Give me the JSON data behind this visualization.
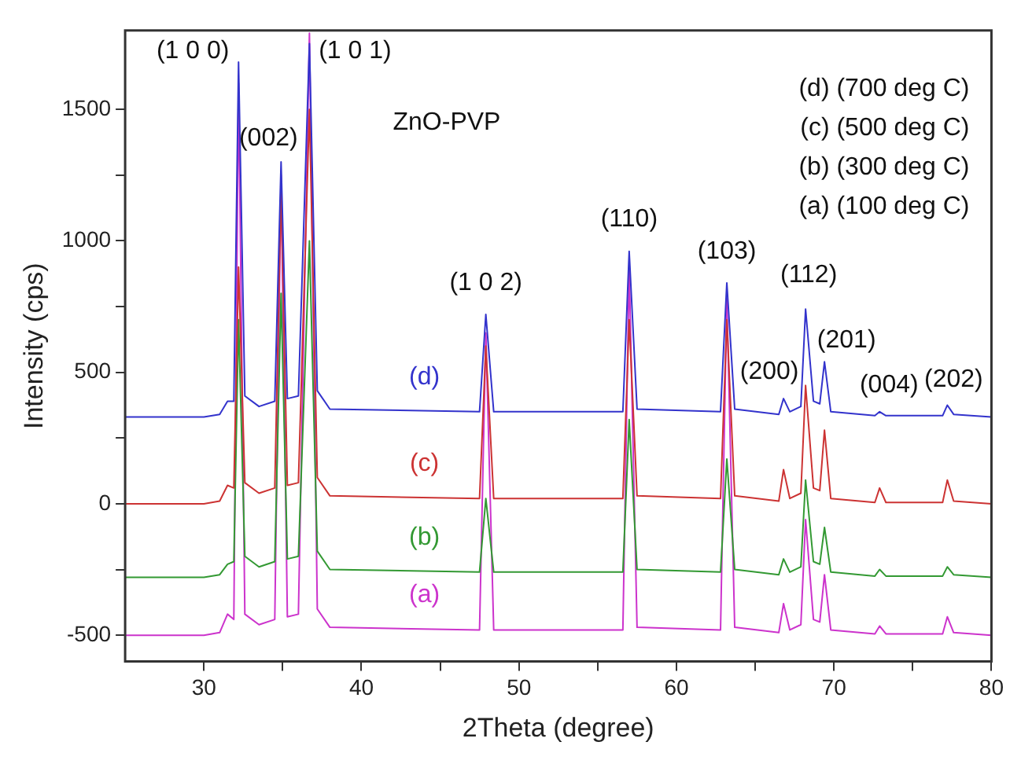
{
  "chart_data": {
    "type": "line",
    "xlabel": "2Theta (degree)",
    "ylabel": "Intensity (cps)",
    "xlim": [
      25,
      80
    ],
    "ylim": [
      -600,
      1800
    ],
    "xticks": [
      30,
      {
        "value": 35,
        "label": null
      },
      40,
      {
        "value": 45,
        "label": null
      },
      50,
      {
        "value": 55,
        "label": null
      },
      60,
      {
        "value": 65,
        "label": null
      },
      70,
      {
        "value": 75,
        "label": null
      },
      80
    ],
    "yticks": [
      {
        "value": -250,
        "label": null
      },
      -500,
      0,
      500,
      1000,
      1500,
      {
        "value": 250,
        "label": null
      },
      {
        "value": 750,
        "label": null
      },
      {
        "value": 1250,
        "label": null
      }
    ],
    "grid": false,
    "legend": false,
    "marker": "none",
    "line_style": "solid",
    "x": [
      25,
      30,
      31,
      31.5,
      31.9,
      32.2,
      32.6,
      33.5,
      34.5,
      34.9,
      35.3,
      36.0,
      36.7,
      37.2,
      38,
      47.5,
      47.9,
      48.4,
      56.6,
      57.0,
      57.5,
      62.8,
      63.2,
      63.7,
      66.5,
      66.8,
      67.2,
      67.9,
      68.2,
      68.7,
      69.1,
      69.4,
      69.8,
      72.6,
      72.9,
      73.3,
      76.9,
      77.2,
      77.6,
      80
    ],
    "series": [
      {
        "name": "(d)",
        "color": "#3333cc",
        "values": [
          330,
          330,
          340,
          390,
          390,
          1680,
          410,
          370,
          390,
          1300,
          400,
          410,
          1750,
          430,
          360,
          350,
          720,
          350,
          350,
          960,
          360,
          350,
          840,
          360,
          340,
          400,
          350,
          370,
          740,
          390,
          380,
          540,
          350,
          335,
          350,
          335,
          335,
          375,
          340,
          330
        ]
      },
      {
        "name": "(c)",
        "color": "#cc3333",
        "values": [
          0,
          0,
          10,
          70,
          60,
          900,
          80,
          40,
          60,
          1200,
          70,
          80,
          1500,
          100,
          30,
          20,
          600,
          20,
          20,
          700,
          30,
          20,
          700,
          30,
          10,
          130,
          20,
          40,
          450,
          60,
          50,
          280,
          20,
          5,
          60,
          5,
          5,
          90,
          10,
          0
        ]
      },
      {
        "name": "(b)",
        "color": "#339933",
        "values": [
          -280,
          -280,
          -270,
          -230,
          -220,
          700,
          -200,
          -240,
          -220,
          800,
          -210,
          -200,
          1000,
          -180,
          -250,
          -260,
          20,
          -260,
          -260,
          320,
          -250,
          -260,
          170,
          -250,
          -270,
          -210,
          -260,
          -240,
          90,
          -220,
          -230,
          -90,
          -260,
          -275,
          -250,
          -275,
          -275,
          -240,
          -270,
          -280
        ]
      },
      {
        "name": "(a)",
        "color": "#cc33cc",
        "values": [
          -500,
          -500,
          -490,
          -420,
          -440,
          1600,
          -420,
          -460,
          -440,
          1250,
          -430,
          -420,
          1790,
          -400,
          -470,
          -480,
          650,
          -480,
          -480,
          900,
          -470,
          -480,
          780,
          -470,
          -490,
          -380,
          -480,
          -460,
          -60,
          -440,
          -450,
          -270,
          -480,
          -495,
          -465,
          -495,
          -495,
          -430,
          -490,
          -500
        ]
      }
    ],
    "annotations": [
      "ZnO-PVP",
      "(d) (700 deg C)",
      "(c) (500 deg C)",
      "(b) (300 deg C)",
      "(a) (100 deg C)",
      "(1 0 0)",
      "(002)",
      "(1 0 1)",
      "(1 0 2)",
      "(110)",
      "(103)",
      "(200)",
      "(112)",
      "(201)",
      "(004)",
      "(202)"
    ]
  }
}
